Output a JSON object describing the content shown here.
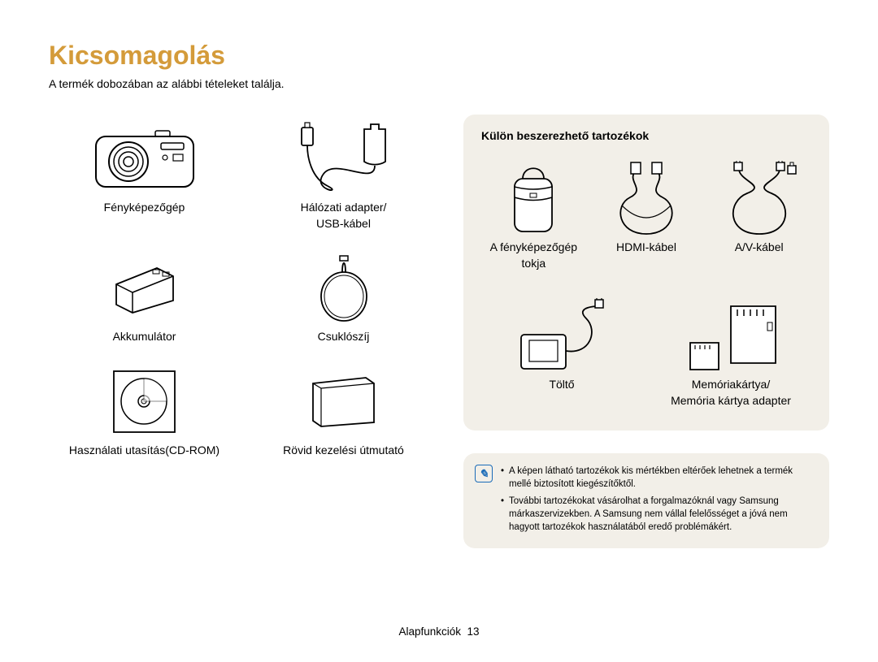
{
  "title": "Kicsomagolás",
  "subtitle": "A termék dobozában az alábbi tételeket találja.",
  "colors": {
    "title": "#d49b3a",
    "panel_bg": "#f2efe8",
    "note_border": "#1a6bb8"
  },
  "included": [
    {
      "label": "Fényképezőgép",
      "icon": "camera"
    },
    {
      "label": "Hálózati adapter/\nUSB-kábel",
      "icon": "adapter"
    },
    {
      "label": "Akkumulátor",
      "icon": "battery"
    },
    {
      "label": "Csuklószíj",
      "icon": "strap"
    },
    {
      "label": "Használati utasítás(CD-ROM)",
      "icon": "cd"
    },
    {
      "label": "Rövid kezelési útmutató",
      "icon": "booklet"
    }
  ],
  "optional": {
    "heading": "Külön beszerezhető tartozékok",
    "row1": [
      {
        "label": "A fényképezőgép tokja",
        "icon": "case"
      },
      {
        "label": "HDMI-kábel",
        "icon": "hdmi"
      },
      {
        "label": "A/V-kábel",
        "icon": "avcable"
      }
    ],
    "row2": [
      {
        "label": "Töltő",
        "icon": "charger"
      },
      {
        "label": "Memóriakártya/\nMemória kártya adapter",
        "icon": "memory"
      }
    ]
  },
  "notes": [
    "A képen látható tartozékok kis mértékben eltérőek lehetnek a termék mellé biztosított kiegészítőktől.",
    "További tartozékokat vásárolhat a forgalmazóknál vagy Samsung márkaszervizekben. A Samsung nem vállal felelősséget a jóvá nem hagyott tartozékok használatából eredő problémákért."
  ],
  "footer": {
    "section": "Alapfunkciók",
    "page": "13"
  }
}
